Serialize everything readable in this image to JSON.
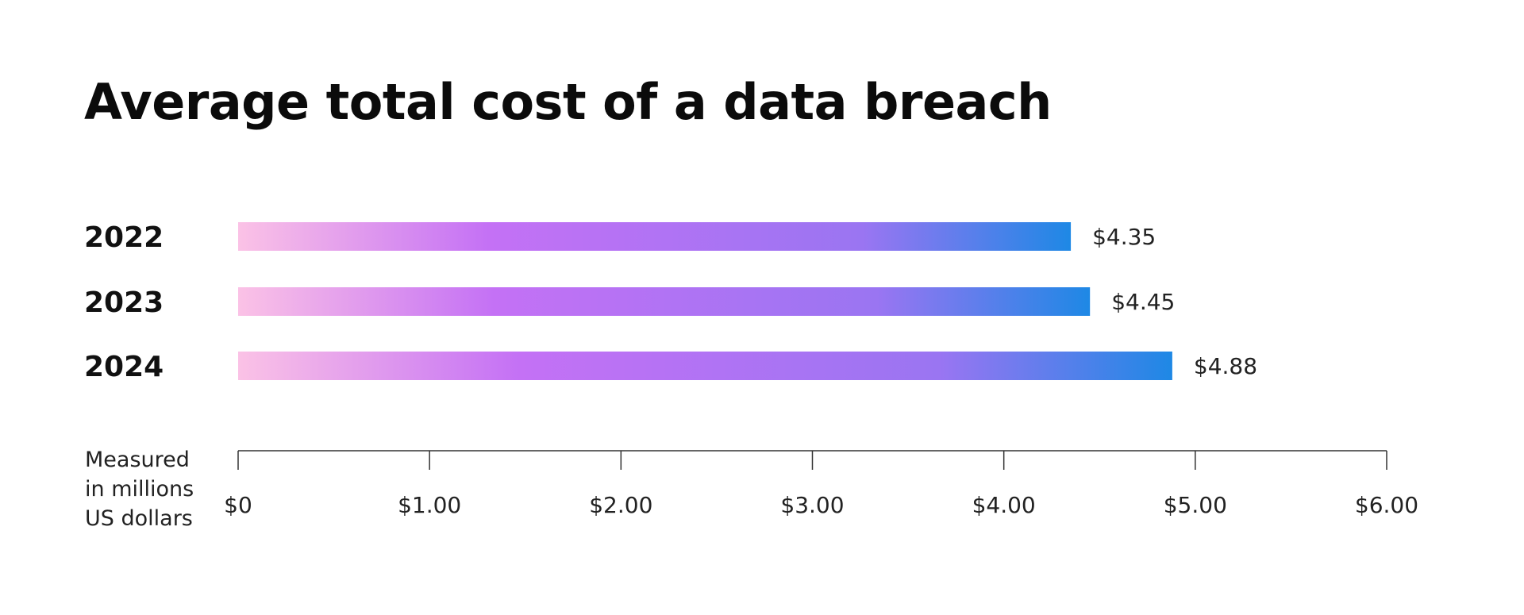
{
  "chart_data": {
    "type": "bar",
    "orientation": "horizontal",
    "title": "Average total cost of a data breach",
    "categories": [
      "2022",
      "2023",
      "2024"
    ],
    "values": [
      4.35,
      4.45,
      4.88
    ],
    "value_labels": [
      "$4.35",
      "$4.45",
      "$4.88"
    ],
    "xlim": [
      0,
      6
    ],
    "x_ticks": [
      0,
      1,
      2,
      3,
      4,
      5,
      6
    ],
    "x_tick_labels": [
      "$0",
      "$1.00",
      "$2.00",
      "$3.00",
      "$4.00",
      "$5.00",
      "$6.00"
    ],
    "unit_label_lines": [
      "Measured",
      "in millions",
      "US dollars"
    ],
    "grid": false,
    "legend": "none",
    "bar_gradient": [
      "#fbc2e6",
      "#c471f5",
      "#9a75f2",
      "#1e88e5"
    ]
  }
}
